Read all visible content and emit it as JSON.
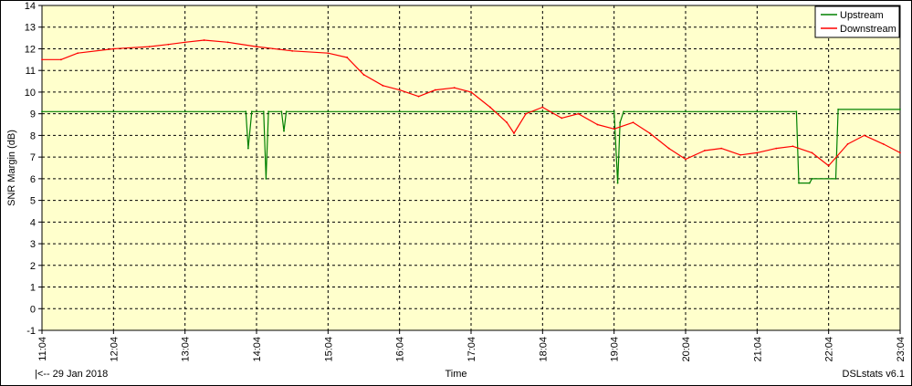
{
  "chart_data": {
    "type": "line",
    "title": "",
    "xlabel": "Time",
    "ylabel": "SNR Margin (dB)",
    "ylim": [
      -1,
      14
    ],
    "xlim": [
      "11:04",
      "23:04"
    ],
    "x_ticks": [
      "11:04",
      "12:04",
      "13:04",
      "14:04",
      "15:04",
      "16:04",
      "17:04",
      "18:04",
      "19:04",
      "20:04",
      "21:04",
      "22:04",
      "23:04"
    ],
    "y_ticks": [
      -1,
      0,
      1,
      2,
      3,
      4,
      5,
      6,
      7,
      8,
      9,
      10,
      11,
      12,
      13,
      14
    ],
    "grid": true,
    "legend_position": "top-right",
    "series": [
      {
        "name": "Upstream",
        "color": "#008000",
        "x": [
          "11:04",
          "12:04",
          "13:04",
          "13:55",
          "13:57",
          "14:00",
          "14:10",
          "14:12",
          "14:14",
          "14:25",
          "14:27",
          "14:29",
          "15:04",
          "16:04",
          "17:04",
          "18:04",
          "19:04",
          "19:07",
          "19:09",
          "19:12",
          "20:04",
          "21:04",
          "21:37",
          "21:39",
          "21:48",
          "21:50",
          "22:10",
          "22:12",
          "23:04"
        ],
        "values": [
          9.1,
          9.1,
          9.1,
          9.1,
          7.4,
          9.1,
          9.1,
          6.0,
          9.1,
          9.1,
          8.2,
          9.1,
          9.1,
          9.1,
          9.1,
          9.1,
          9.1,
          5.8,
          8.6,
          9.1,
          9.1,
          9.1,
          9.1,
          5.8,
          5.8,
          6.0,
          6.0,
          9.2,
          9.2
        ]
      },
      {
        "name": "Downstream",
        "color": "#ff0000",
        "x": [
          "11:04",
          "11:20",
          "11:34",
          "12:04",
          "12:34",
          "12:50",
          "13:04",
          "13:20",
          "13:40",
          "14:04",
          "14:34",
          "15:04",
          "15:20",
          "15:34",
          "15:50",
          "16:04",
          "16:20",
          "16:34",
          "16:50",
          "17:04",
          "17:20",
          "17:34",
          "17:40",
          "17:50",
          "18:04",
          "18:20",
          "18:34",
          "18:50",
          "19:04",
          "19:20",
          "19:34",
          "19:50",
          "20:04",
          "20:20",
          "20:34",
          "20:50",
          "21:04",
          "21:20",
          "21:34",
          "21:50",
          "22:04",
          "22:20",
          "22:34",
          "22:50",
          "23:04"
        ],
        "values": [
          11.5,
          11.5,
          11.8,
          12.0,
          12.1,
          12.2,
          12.3,
          12.4,
          12.3,
          12.1,
          11.9,
          11.8,
          11.6,
          10.8,
          10.3,
          10.1,
          9.8,
          10.1,
          10.2,
          10.0,
          9.3,
          8.6,
          8.1,
          9.0,
          9.3,
          8.8,
          9.0,
          8.5,
          8.3,
          8.6,
          8.1,
          7.4,
          6.9,
          7.3,
          7.4,
          7.1,
          7.2,
          7.4,
          7.5,
          7.2,
          6.6,
          7.6,
          8.0,
          7.6,
          7.2
        ]
      }
    ]
  },
  "footer": {
    "left": "|<-- 29 Jan 2018",
    "center": "Time",
    "right": "DSLstats v6.1"
  },
  "colors": {
    "plot_background": "#ffffcc",
    "grid": "#000000"
  }
}
